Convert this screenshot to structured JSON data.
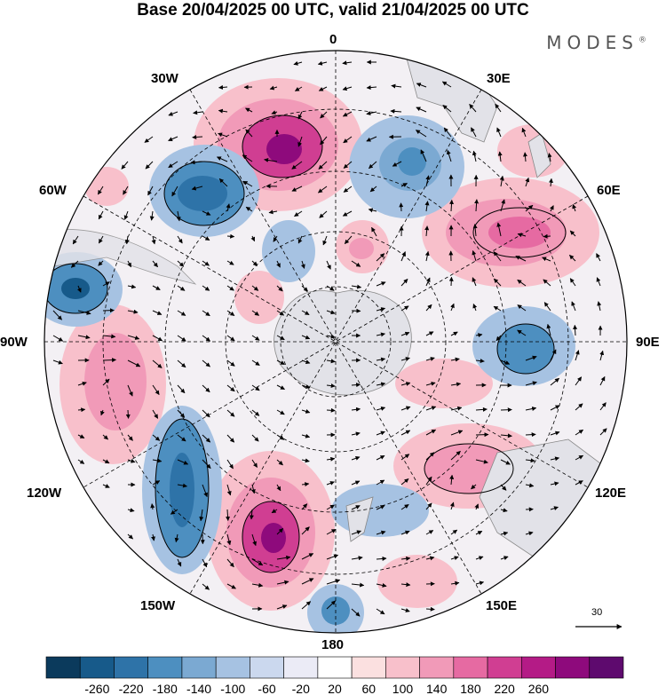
{
  "title": "Base 20/04/2025 00 UTC, valid 21/04/2025 00 UTC",
  "brand": {
    "name": "MODES",
    "mark": "®"
  },
  "longitude_labels": {
    "lon_0": "0",
    "lon_30e": "30E",
    "lon_60e": "60E",
    "lon_90e": "90E",
    "lon_120e": "120E",
    "lon_150e": "150E",
    "lon_180": "180",
    "lon_150w": "150W",
    "lon_120w": "120W",
    "lon_90w": "90W",
    "lon_60w": "60W",
    "lon_30w": "30W"
  },
  "reference_vector": {
    "value": "30"
  },
  "colorbar": {
    "colors": [
      "#0b3a5c",
      "#175a8a",
      "#2e73a8",
      "#4d8fc0",
      "#7ba9d2",
      "#a6c2e2",
      "#cbd8ee",
      "#ebebf6",
      "#ffffff",
      "#fbe0e0",
      "#f8c0cb",
      "#f19ab8",
      "#e66aa2",
      "#d03e92",
      "#b41b86",
      "#8e0a7c",
      "#5e0a6e"
    ],
    "tick_labels": [
      "-260",
      "-220",
      "-180",
      "-140",
      "-100",
      "-60",
      "-20",
      "20",
      "60",
      "100",
      "140",
      "180",
      "220",
      "260"
    ]
  },
  "anomaly_colors": {
    "negative_strong": "#2e73a8",
    "negative_weak": "#a6c2e2",
    "positive_weak": "#f8c0cb",
    "positive_strong": "#b41b86"
  },
  "land_color": "#e2e2e8"
}
